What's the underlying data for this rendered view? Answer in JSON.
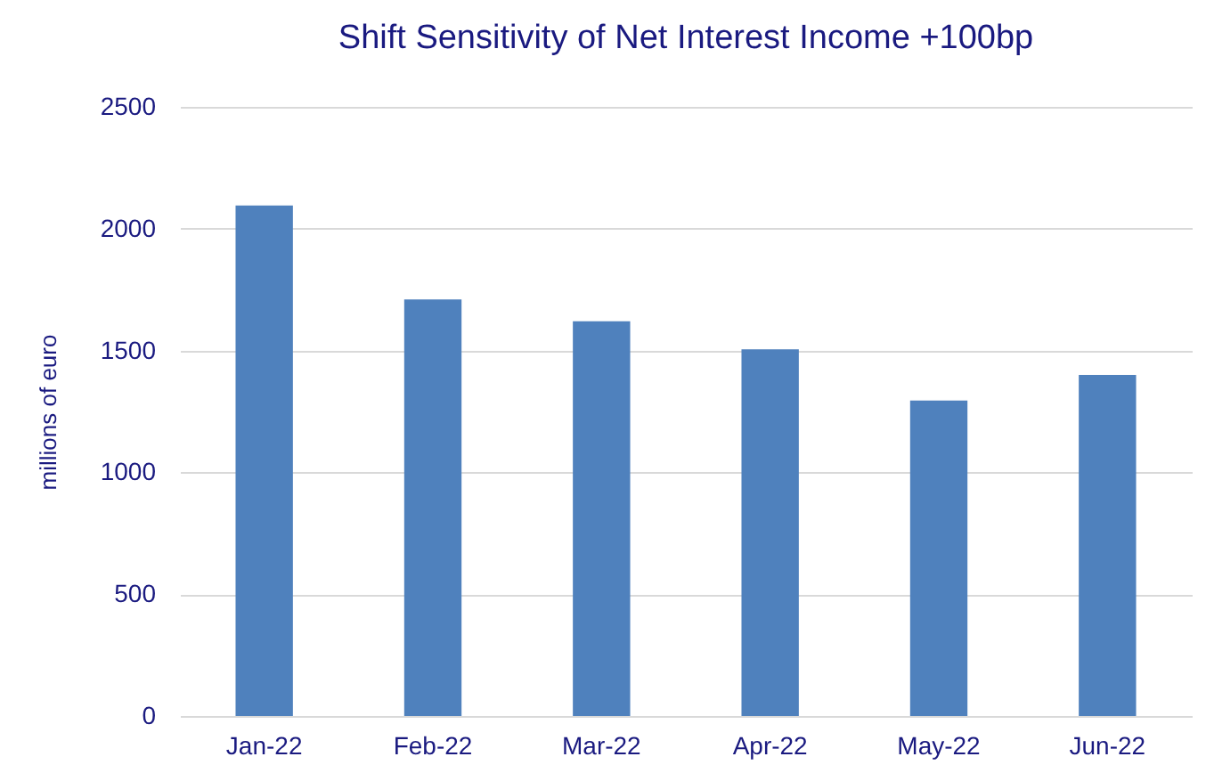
{
  "chart_data": {
    "type": "bar",
    "title": "Shift Sensitivity of Net Interest Income +100bp",
    "ylabel": "millions of euro",
    "categories": [
      "Jan-22",
      "Feb-22",
      "Mar-22",
      "Apr-22",
      "May-22",
      "Jun-22"
    ],
    "values": [
      2095,
      1710,
      1620,
      1505,
      1295,
      1400
    ],
    "color": "#4f81bd",
    "ylim": [
      0,
      2500
    ],
    "yticks": [
      0,
      500,
      1000,
      1500,
      2000,
      2500
    ],
    "grid": "y"
  }
}
